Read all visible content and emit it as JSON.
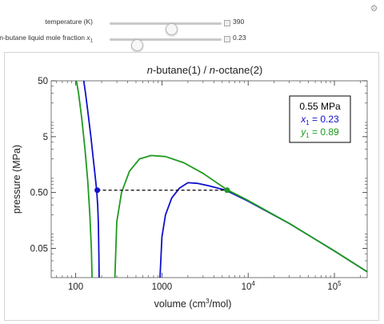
{
  "controls": {
    "temperature": {
      "label": "temperature (K)",
      "value": "390",
      "fraction": 0.55
    },
    "mole_fraction": {
      "label_prefix": "n-butane liquid mole fraction ",
      "symbol": "x",
      "subscript": "1",
      "value": "0.23",
      "fraction": 0.24
    },
    "gear_icon": "gear-icon"
  },
  "legend": {
    "pressure_text": "0.55 MPa",
    "x1": {
      "symbol": "x",
      "subscript": "1",
      "text": " = 0.23"
    },
    "y1": {
      "symbol": "y",
      "subscript": "1",
      "text": " = 0.89"
    }
  },
  "chart_data": {
    "type": "line",
    "title": "n-butane(1) / n-octane(2)",
    "title_parts": {
      "c1": "n",
      "t1": "-butane(1) / ",
      "c2": "n",
      "t2": "-octane(2)"
    },
    "xlabel": "volume (cm3/mol)",
    "xlabel_parts": {
      "pre": "volume (cm",
      "sup": "3",
      "post": "/mol)"
    },
    "ylabel": "pressure (MPa)",
    "x_scale": "log",
    "y_scale": "log",
    "xlim": [
      52,
      240000
    ],
    "ylim": [
      0.015,
      50
    ],
    "x_ticks": [
      {
        "value": 100,
        "label": "100"
      },
      {
        "value": 1000,
        "label": "1000"
      },
      {
        "value": 10000,
        "base": "10",
        "exp": "4"
      },
      {
        "value": 100000,
        "base": "10",
        "exp": "5"
      }
    ],
    "y_ticks": [
      {
        "value": 50,
        "label": "50"
      },
      {
        "value": 5,
        "label": "5"
      },
      {
        "value": 0.5,
        "label": "0.50"
      },
      {
        "value": 0.05,
        "label": "0.05"
      }
    ],
    "colors": {
      "liquid": "#1010cc",
      "vapor": "#1f9a1f",
      "tie": "#000000"
    },
    "series": [
      {
        "color": "#1010cc",
        "points": [
          [
            124,
            50
          ],
          [
            130,
            30
          ],
          [
            140,
            12
          ],
          [
            150,
            5
          ],
          [
            160,
            2
          ],
          [
            168,
            1
          ],
          [
            175,
            0.55
          ],
          [
            180,
            0.3
          ],
          [
            183,
            0.15
          ],
          [
            185,
            0.06
          ],
          [
            186,
            0.03
          ],
          [
            187,
            0.015
          ]
        ]
      },
      {
        "color": "#1010cc",
        "points": [
          [
            950,
            0.015
          ],
          [
            1000,
            0.08
          ],
          [
            1100,
            0.2
          ],
          [
            1300,
            0.4
          ],
          [
            1600,
            0.6
          ],
          [
            2000,
            0.75
          ],
          [
            2600,
            0.73
          ],
          [
            3500,
            0.66
          ],
          [
            5500,
            0.55
          ],
          [
            10000,
            0.35
          ],
          [
            30000,
            0.14
          ],
          [
            100000,
            0.045
          ],
          [
            240000,
            0.019
          ]
        ]
      },
      {
        "color": "#1f9a1f",
        "points": [
          [
            102,
            50
          ],
          [
            108,
            30
          ],
          [
            118,
            10
          ],
          [
            128,
            3
          ],
          [
            138,
            0.8
          ],
          [
            146,
            0.2
          ],
          [
            152,
            0.05
          ],
          [
            155,
            0.015
          ]
        ]
      },
      {
        "color": "#1f9a1f",
        "points": [
          [
            285,
            0.015
          ],
          [
            300,
            0.15
          ],
          [
            340,
            0.5
          ],
          [
            420,
            1.2
          ],
          [
            550,
            2.0
          ],
          [
            750,
            2.3
          ],
          [
            1100,
            2.2
          ],
          [
            1800,
            1.7
          ],
          [
            3000,
            1.1
          ],
          [
            5700,
            0.56
          ],
          [
            10000,
            0.36
          ],
          [
            30000,
            0.14
          ],
          [
            100000,
            0.045
          ],
          [
            240000,
            0.019
          ]
        ]
      }
    ],
    "tie_line": {
      "x": [
        178,
        5700
      ],
      "y": 0.55
    },
    "markers": [
      {
        "x": 178,
        "y": 0.55,
        "color": "#1010cc"
      },
      {
        "x": 5700,
        "y": 0.55,
        "color": "#1f9a1f"
      }
    ]
  }
}
